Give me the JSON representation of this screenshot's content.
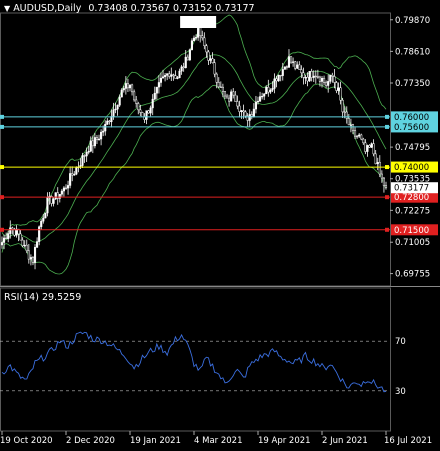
{
  "header": {
    "symbol": "AUDUSD,Daily",
    "ohlc": "0.73408 0.73567 0.73152 0.73177"
  },
  "rsi": {
    "label": "RSI(14) 29.5259",
    "levels": [
      "70",
      "30"
    ],
    "ylim": [
      0,
      100
    ]
  },
  "colors": {
    "background": "#000000",
    "candle": "#ffffff",
    "bands": "#4caf50",
    "rsi_line": "#3b6fe0",
    "cyan": "#5fd3e0",
    "yellow": "#ffff00",
    "red": "#e02020",
    "grid": "#5a5a5a"
  },
  "chart_data": {
    "type": "candlestick",
    "title": "AUDUSD,Daily",
    "ylim": [
      0.693,
      0.801
    ],
    "price_ticks": [
      "0.79870",
      "0.78610",
      "0.77350",
      "0.74795",
      "0.73535",
      "0.72275",
      "0.71005",
      "0.69755"
    ],
    "x_ticks": [
      "19 Oct 2020",
      "2 Dec 2020",
      "19 Jan 2021",
      "4 Mar 2021",
      "19 Apr 2021",
      "2 Jun 2021",
      "16 Jul 2021"
    ],
    "horizontal_levels": [
      {
        "value": 0.76,
        "label": "0.76000",
        "color": "cyan"
      },
      {
        "value": 0.756,
        "label": "0.75600",
        "color": "cyan"
      },
      {
        "value": 0.74,
        "label": "0.74000",
        "color": "yellow"
      },
      {
        "value": 0.728,
        "label": "0.72800",
        "color": "red"
      },
      {
        "value": 0.715,
        "label": "0.71500",
        "color": "red"
      }
    ],
    "current_price": {
      "value": 0.73177,
      "label": "0.73177"
    },
    "close_path": [
      [
        0,
        0.71
      ],
      [
        4,
        0.716
      ],
      [
        8,
        0.713
      ],
      [
        12,
        0.706
      ],
      [
        15,
        0.703
      ],
      [
        18,
        0.716
      ],
      [
        22,
        0.726
      ],
      [
        26,
        0.728
      ],
      [
        30,
        0.731
      ],
      [
        34,
        0.737
      ],
      [
        38,
        0.742
      ],
      [
        42,
        0.748
      ],
      [
        46,
        0.751
      ],
      [
        50,
        0.756
      ],
      [
        54,
        0.763
      ],
      [
        58,
        0.77
      ],
      [
        62,
        0.773
      ],
      [
        65,
        0.764
      ],
      [
        69,
        0.76
      ],
      [
        73,
        0.766
      ],
      [
        77,
        0.774
      ],
      [
        81,
        0.778
      ],
      [
        85,
        0.776
      ],
      [
        89,
        0.782
      ],
      [
        92,
        0.79
      ],
      [
        95,
        0.795
      ],
      [
        97,
        0.79
      ],
      [
        100,
        0.784
      ],
      [
        103,
        0.778
      ],
      [
        106,
        0.771
      ],
      [
        109,
        0.766
      ],
      [
        112,
        0.77
      ],
      [
        115,
        0.764
      ],
      [
        118,
        0.759
      ],
      [
        121,
        0.762
      ],
      [
        124,
        0.768
      ],
      [
        127,
        0.77
      ],
      [
        130,
        0.772
      ],
      [
        133,
        0.776
      ],
      [
        136,
        0.779
      ],
      [
        139,
        0.783
      ],
      [
        142,
        0.78
      ],
      [
        145,
        0.777
      ],
      [
        148,
        0.776
      ],
      [
        151,
        0.778
      ],
      [
        154,
        0.776
      ],
      [
        157,
        0.773
      ],
      [
        160,
        0.776
      ],
      [
        163,
        0.77
      ],
      [
        165,
        0.762
      ],
      [
        168,
        0.757
      ],
      [
        170,
        0.753
      ],
      [
        173,
        0.752
      ],
      [
        176,
        0.746
      ],
      [
        179,
        0.748
      ],
      [
        181,
        0.743
      ],
      [
        183,
        0.737
      ],
      [
        185,
        0.733
      ],
      [
        186,
        0.7318
      ]
    ],
    "rsi_path": [
      [
        0,
        45
      ],
      [
        4,
        50
      ],
      [
        8,
        42
      ],
      [
        12,
        38
      ],
      [
        16,
        52
      ],
      [
        20,
        57
      ],
      [
        24,
        62
      ],
      [
        28,
        70
      ],
      [
        32,
        66
      ],
      [
        36,
        74
      ],
      [
        40,
        77
      ],
      [
        44,
        72
      ],
      [
        48,
        71
      ],
      [
        52,
        68
      ],
      [
        56,
        63
      ],
      [
        60,
        58
      ],
      [
        64,
        49
      ],
      [
        68,
        56
      ],
      [
        72,
        62
      ],
      [
        76,
        66
      ],
      [
        80,
        61
      ],
      [
        84,
        71
      ],
      [
        87,
        75
      ],
      [
        90,
        66
      ],
      [
        93,
        52
      ],
      [
        96,
        46
      ],
      [
        99,
        56
      ],
      [
        102,
        50
      ],
      [
        105,
        43
      ],
      [
        108,
        36
      ],
      [
        111,
        42
      ],
      [
        114,
        46
      ],
      [
        117,
        40
      ],
      [
        120,
        50
      ],
      [
        123,
        55
      ],
      [
        126,
        58
      ],
      [
        129,
        60
      ],
      [
        132,
        62
      ],
      [
        135,
        57
      ],
      [
        138,
        55
      ],
      [
        141,
        52
      ],
      [
        144,
        54
      ],
      [
        147,
        58
      ],
      [
        150,
        55
      ],
      [
        153,
        52
      ],
      [
        156,
        48
      ],
      [
        159,
        52
      ],
      [
        162,
        45
      ],
      [
        165,
        38
      ],
      [
        168,
        32
      ],
      [
        171,
        38
      ],
      [
        174,
        35
      ],
      [
        177,
        40
      ],
      [
        180,
        36
      ],
      [
        183,
        33
      ],
      [
        186,
        29.5
      ]
    ],
    "n_bars": 187
  }
}
